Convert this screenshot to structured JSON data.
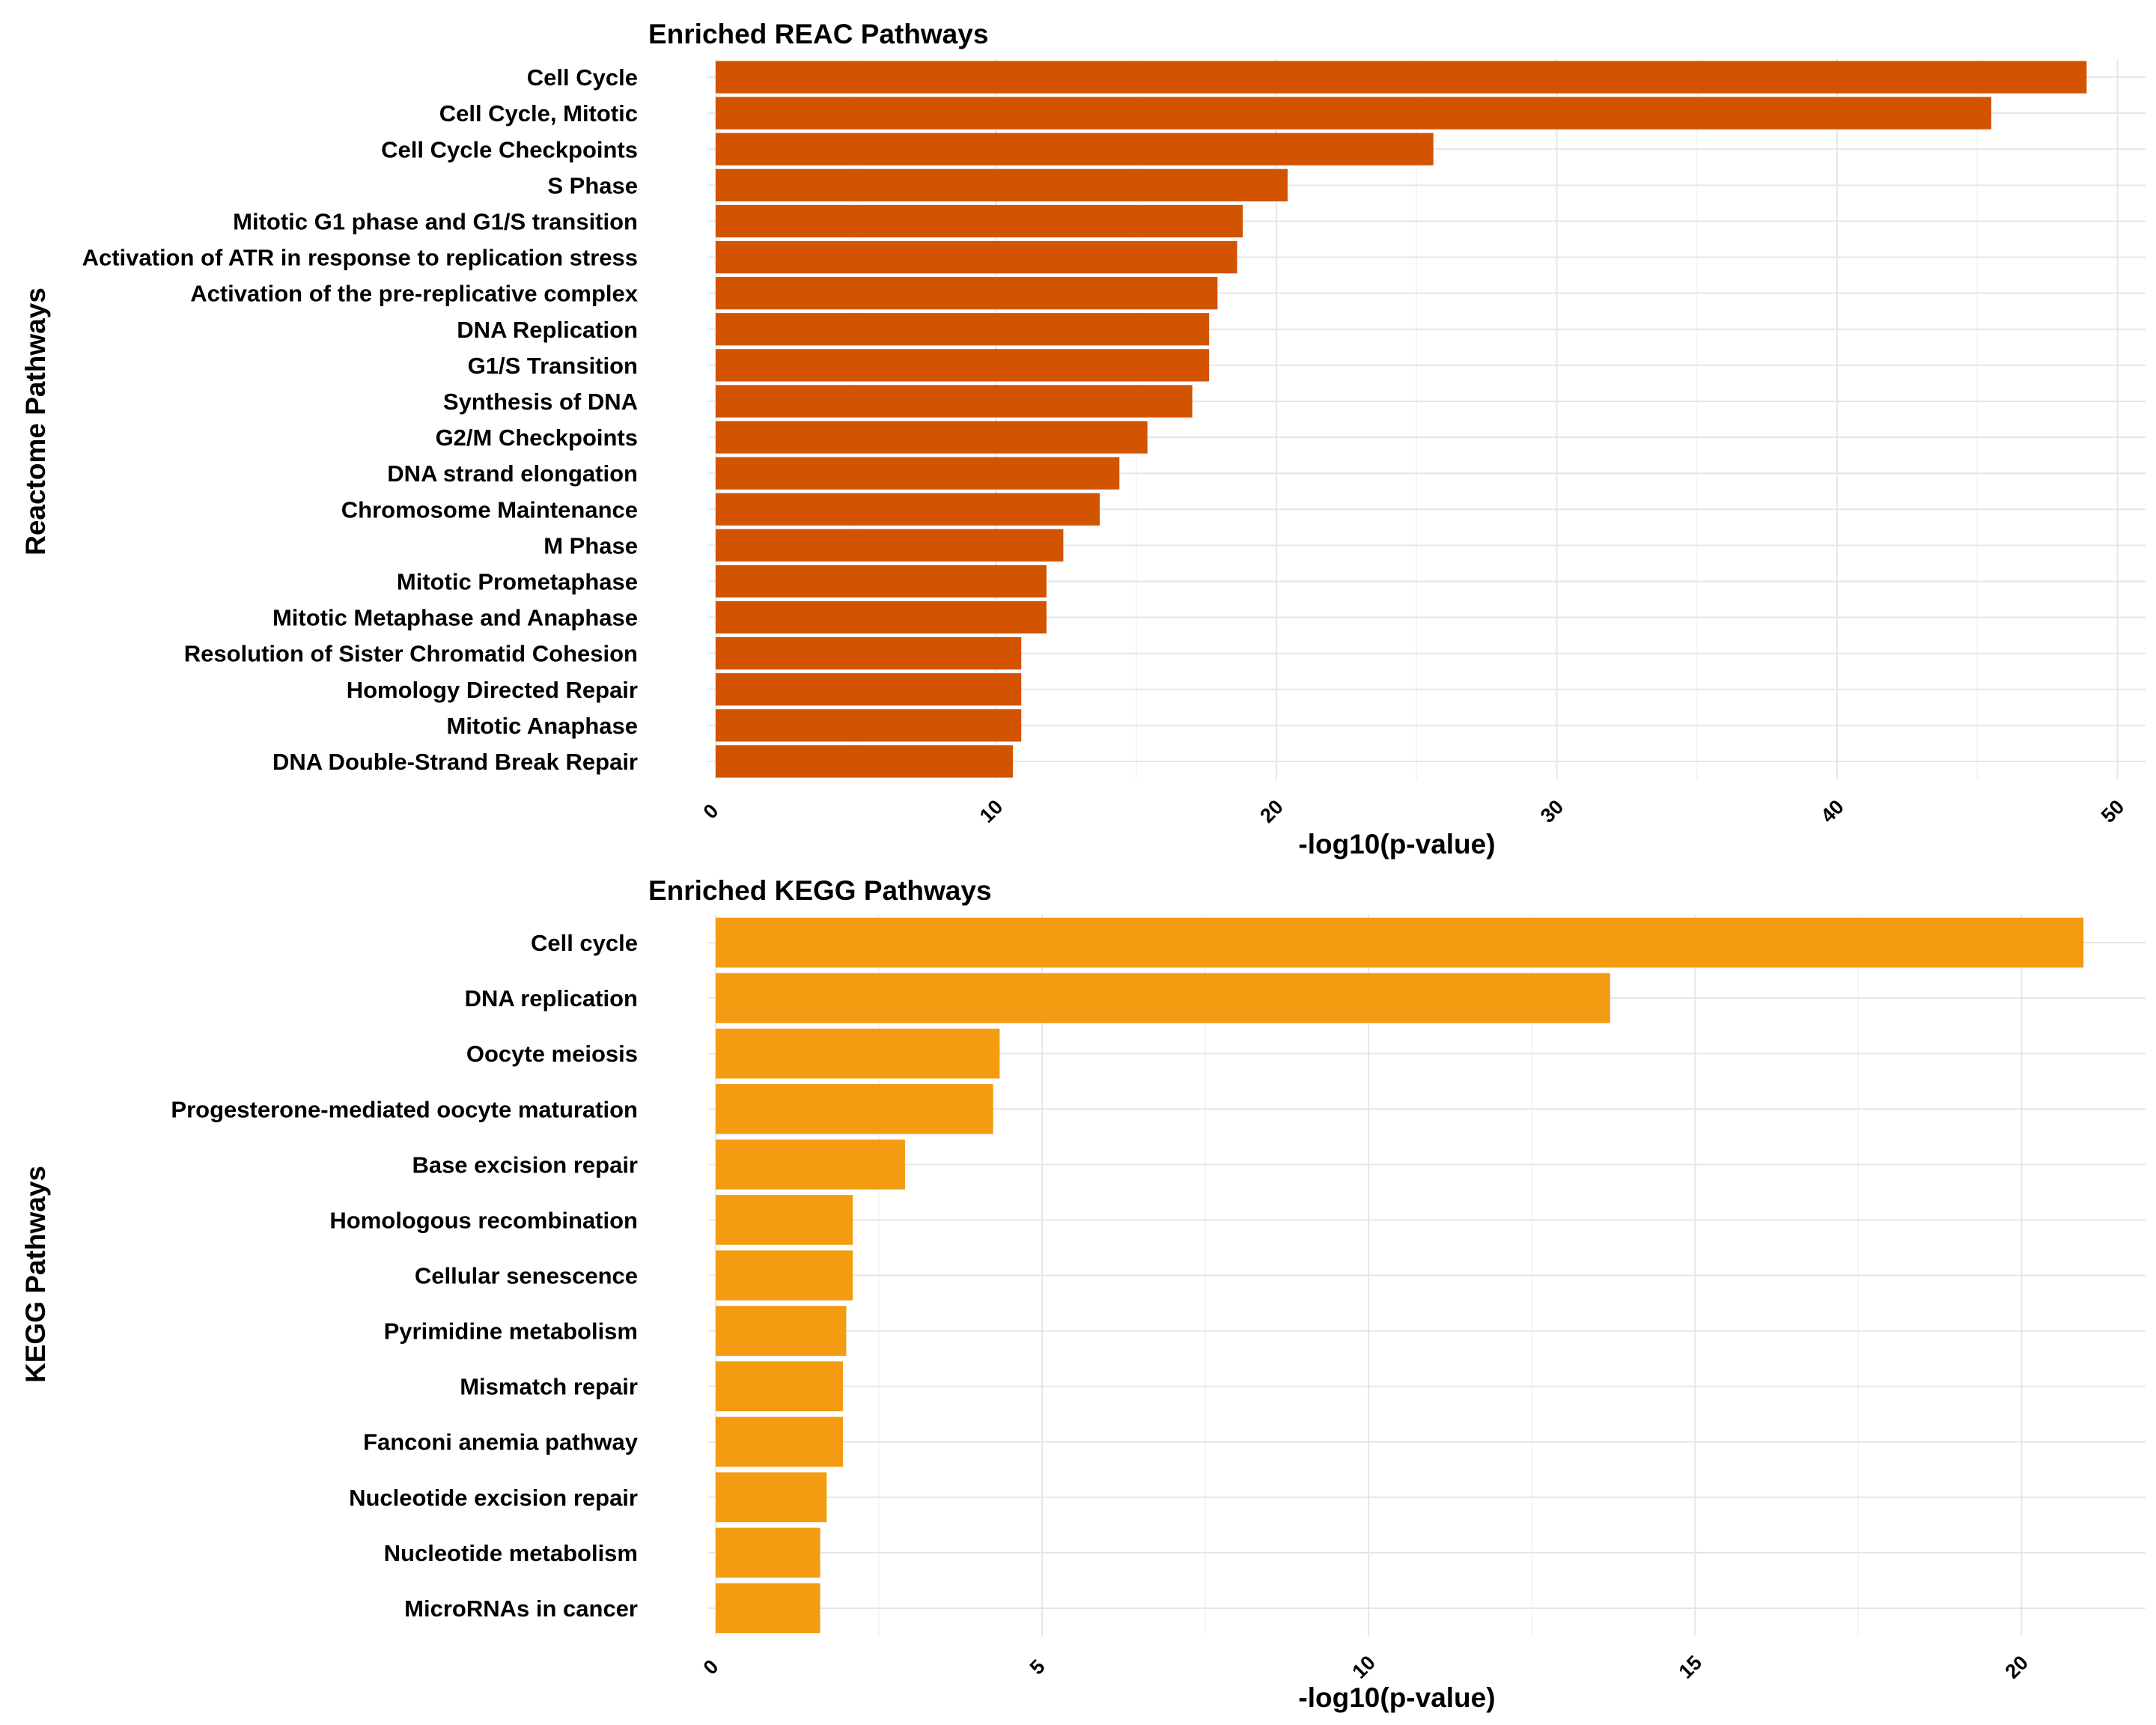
{
  "chart_data": [
    {
      "type": "bar",
      "orientation": "horizontal",
      "title": "Enriched REAC Pathways",
      "xlabel": "-log10(p-value)",
      "ylabel": "Reactome Pathways",
      "color": "#D35400",
      "xlim": [
        0,
        51
      ],
      "xticks": [
        0,
        10,
        20,
        30,
        40,
        50
      ],
      "tick_labels": [
        "0",
        "10",
        "20",
        "30",
        "40",
        "50"
      ],
      "grid": true,
      "categories": [
        "Cell Cycle",
        "Cell Cycle, Mitotic",
        "Cell Cycle Checkpoints",
        "S Phase",
        "Mitotic G1 phase and G1/S transition",
        "Activation of ATR in response to replication stress",
        "Activation of the pre-replicative complex",
        "DNA Replication",
        "G1/S Transition",
        "Synthesis of DNA",
        "G2/M Checkpoints",
        "DNA strand elongation",
        "Chromosome Maintenance",
        "M Phase",
        "Mitotic Prometaphase",
        "Mitotic Metaphase and Anaphase",
        "Resolution of Sister Chromatid Cohesion",
        "Homology Directed Repair",
        "Mitotic Anaphase",
        "DNA Double-Strand Break Repair"
      ],
      "values": [
        48.9,
        45.5,
        25.6,
        20.4,
        18.8,
        18.6,
        17.9,
        17.6,
        17.6,
        17.0,
        15.4,
        14.4,
        13.7,
        12.4,
        11.8,
        11.8,
        10.9,
        10.9,
        10.9,
        10.6
      ]
    },
    {
      "type": "bar",
      "orientation": "horizontal",
      "title": "Enriched KEGG Pathways",
      "xlabel": "-log10(p-value)",
      "ylabel": "KEGG Pathways",
      "color": "#F39C12",
      "xlim": [
        0,
        21.9
      ],
      "xticks": [
        0,
        5,
        10,
        15,
        20
      ],
      "tick_labels": [
        "0",
        "5",
        "10",
        "15",
        "20"
      ],
      "grid": true,
      "categories": [
        "Cell cycle",
        "DNA replication",
        "Oocyte meiosis",
        "Progesterone-mediated oocyte maturation",
        "Base excision repair",
        "Homologous recombination",
        "Cellular senescence",
        "Pyrimidine metabolism",
        "Mismatch repair",
        "Fanconi anemia pathway",
        "Nucleotide excision repair",
        "Nucleotide metabolism",
        "MicroRNAs in cancer"
      ],
      "values": [
        20.95,
        13.7,
        4.35,
        4.25,
        2.9,
        2.1,
        2.1,
        2.0,
        1.95,
        1.95,
        1.7,
        1.6,
        1.6
      ]
    }
  ]
}
